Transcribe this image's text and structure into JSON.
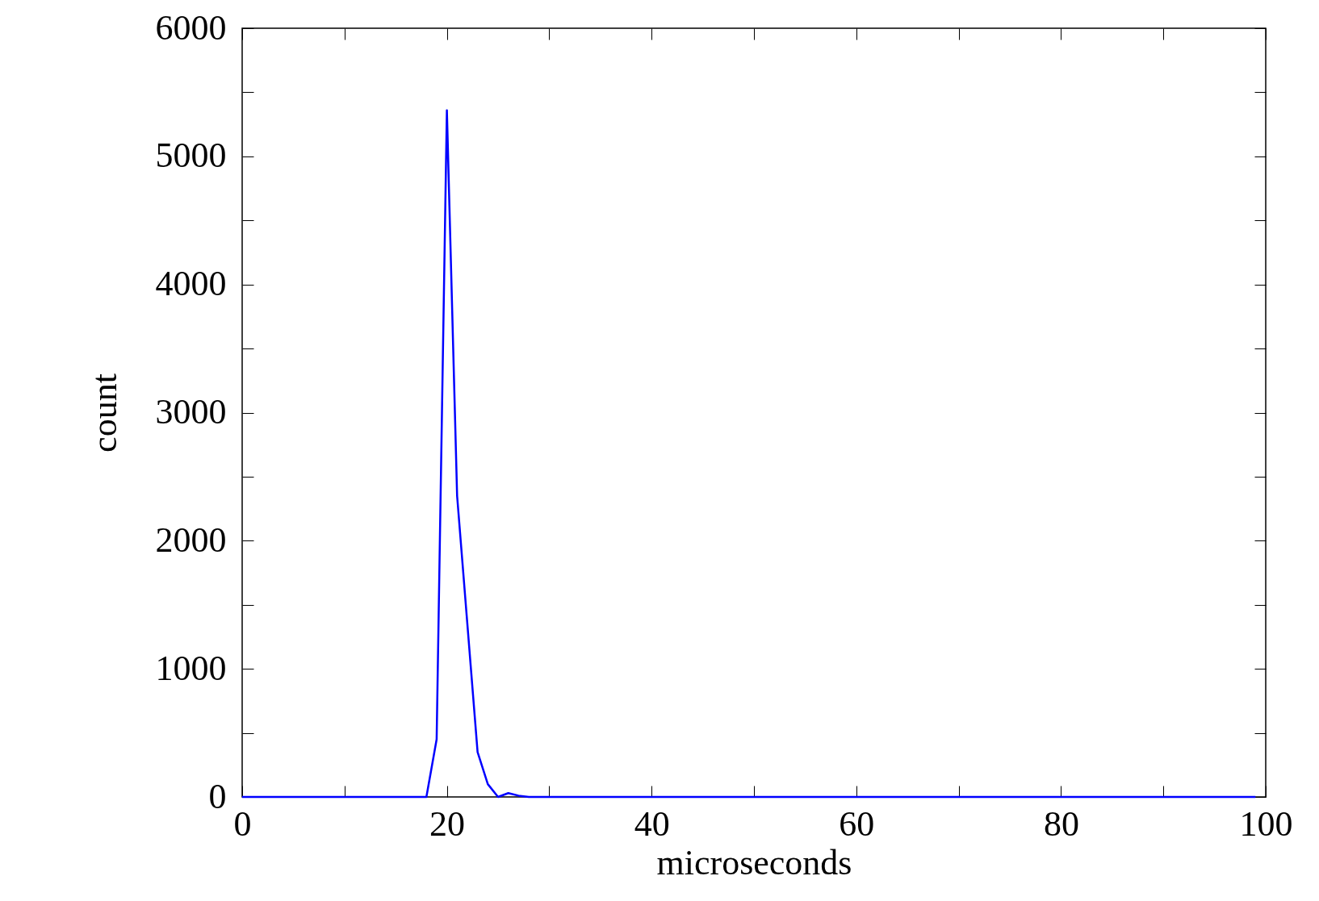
{
  "chart_data": {
    "type": "line",
    "xlabel": "microseconds",
    "ylabel": "count",
    "x": [
      0,
      18,
      19,
      20,
      21,
      23,
      24,
      25,
      26,
      27,
      28,
      99
    ],
    "series": [
      {
        "color": "#0000ff",
        "values": [
          0,
          0,
          450,
          5360,
          2350,
          350,
          100,
          0,
          30,
          10,
          0,
          0
        ]
      }
    ],
    "xlim": [
      0,
      100
    ],
    "ylim": [
      0,
      6000
    ],
    "xticks": [
      0,
      {
        "value": 10,
        "label": null
      },
      20,
      {
        "value": 30,
        "label": null
      },
      40,
      {
        "value": 50,
        "label": null
      },
      60,
      {
        "value": 70,
        "label": null
      },
      80,
      {
        "value": 90,
        "label": null
      },
      100
    ],
    "yticks": [
      0,
      {
        "value": 500,
        "label": null
      },
      1000,
      {
        "value": 1500,
        "label": null
      },
      2000,
      {
        "value": 2500,
        "label": null
      },
      3000,
      {
        "value": 3500,
        "label": null
      },
      4000,
      {
        "value": 4500,
        "label": null
      },
      5000,
      {
        "value": 5500,
        "label": null
      },
      6000
    ],
    "grid": false,
    "marker": "none",
    "line_style": "solid"
  }
}
